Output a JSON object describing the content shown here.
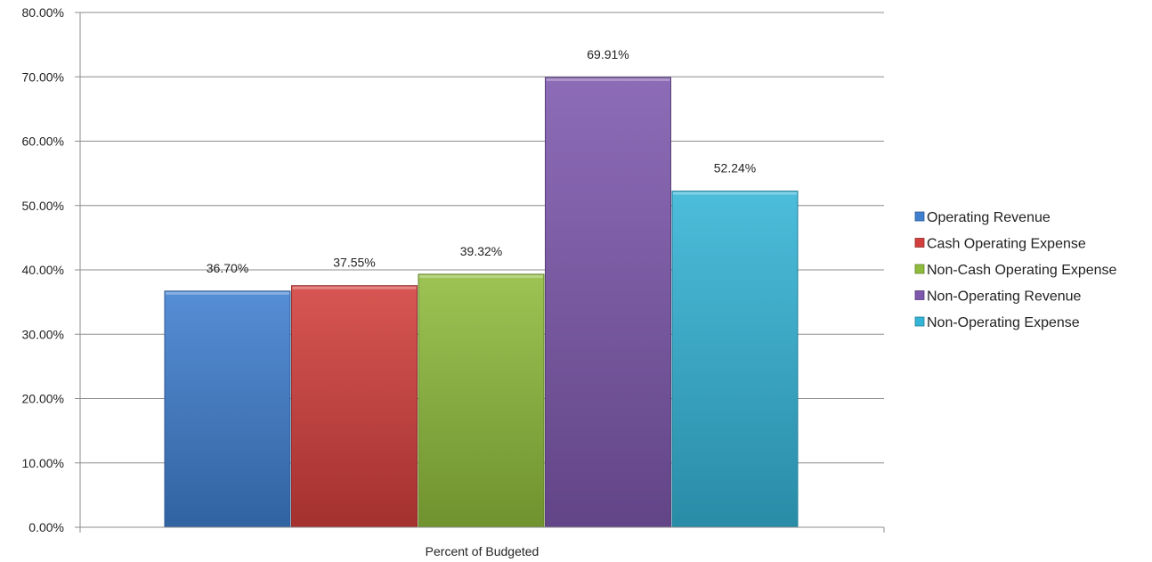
{
  "chart_data": {
    "type": "bar",
    "title": "",
    "xlabel": "",
    "ylabel": "",
    "categories": [
      "Percent of Budgeted"
    ],
    "ylim": [
      0,
      80
    ],
    "y_tick_step": 10,
    "y_tick_labels": [
      "0.00%",
      "10.00%",
      "20.00%",
      "30.00%",
      "40.00%",
      "50.00%",
      "60.00%",
      "70.00%",
      "80.00%"
    ],
    "grid": true,
    "legend_position": "right",
    "series": [
      {
        "name": "Operating Revenue",
        "values": [
          36.7
        ],
        "label": "36.70%",
        "color": "#3f7fcf"
      },
      {
        "name": "Cash Operating Expense",
        "values": [
          37.55
        ],
        "label": "37.55%",
        "color": "#d23f3c"
      },
      {
        "name": "Non-Cash Operating Expense",
        "values": [
          39.32
        ],
        "label": "39.32%",
        "color": "#8fbb3c"
      },
      {
        "name": "Non-Operating Revenue",
        "values": [
          69.91
        ],
        "label": "69.91%",
        "color": "#7d58ad"
      },
      {
        "name": "Non-Operating Expense",
        "values": [
          52.24
        ],
        "label": "52.24%",
        "color": "#34b4d6"
      }
    ]
  }
}
